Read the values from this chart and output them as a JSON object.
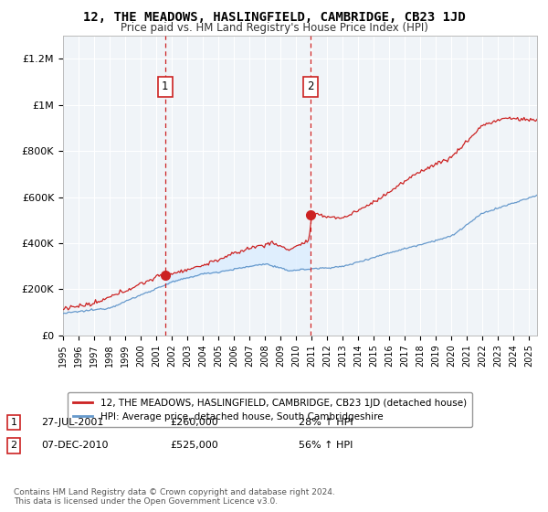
{
  "title": "12, THE MEADOWS, HASLINGFIELD, CAMBRIDGE, CB23 1JD",
  "subtitle": "Price paid vs. HM Land Registry's House Price Index (HPI)",
  "legend_line1": "12, THE MEADOWS, HASLINGFIELD, CAMBRIDGE, CB23 1JD (detached house)",
  "legend_line2": "HPI: Average price, detached house, South Cambridgeshire",
  "sale1_label": "1",
  "sale1_date": "27-JUL-2001",
  "sale1_price": "£260,000",
  "sale1_pct": "28% ↑ HPI",
  "sale1_year": 2001.57,
  "sale1_value": 260000,
  "sale2_label": "2",
  "sale2_date": "07-DEC-2010",
  "sale2_price": "£525,000",
  "sale2_pct": "56% ↑ HPI",
  "sale2_year": 2010.93,
  "sale2_value": 525000,
  "red_color": "#cc2222",
  "blue_color": "#6699cc",
  "fill_color": "#ddeeff",
  "vline_color": "#cc2222",
  "background_color": "#f0f4f8",
  "ylim": [
    0,
    1300000
  ],
  "xlim": [
    1995.0,
    2025.5
  ],
  "footer": "Contains HM Land Registry data © Crown copyright and database right 2024.\nThis data is licensed under the Open Government Licence v3.0."
}
